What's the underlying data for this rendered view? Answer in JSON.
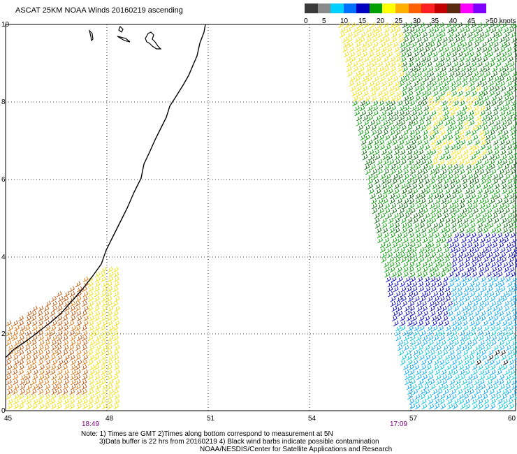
{
  "title": "ASCAT 25KM NOAA Winds 20160219 ascending",
  "axes": {
    "y_ticks": [
      "10",
      "8",
      "6",
      "4",
      "2",
      "0"
    ],
    "x_ticks": [
      "45",
      "48",
      "51",
      "54",
      "57",
      "60"
    ],
    "lat_range": [
      0,
      10
    ],
    "lon_range": [
      45,
      60
    ]
  },
  "pass_times": [
    "18:49",
    "17:09"
  ],
  "color_scale": {
    "labels": [
      "0",
      "5",
      "10",
      "15",
      "20",
      "25",
      "30",
      "35",
      "40",
      "45",
      ">50 knots"
    ],
    "colors": [
      "#3a3a3a",
      "#8a8a8a",
      "#00d0ff",
      "#0070ff",
      "#0000c0",
      "#00a000",
      "#ffff00",
      "#ffb000",
      "#ff6000",
      "#ff2020",
      "#c00000",
      "#5a2a10",
      "#ff00ff",
      "#8000ff"
    ]
  },
  "notes": [
    "Note: 1) Times are GMT 2)Times along bottom correspond to measurement at 5N",
    "3)Data buffer is 22 hrs from 20160219 4) Black wind barbs indicate possible contamination",
    "NOAA/NESDIS/Center for Satellite Applications and Research"
  ],
  "wind_colors": {
    "orange": "#e07000",
    "dark_orange": "#c05000",
    "yellow": "#f0e000",
    "green": "#00a000",
    "dark_green": "#006600",
    "blue": "#0000c8",
    "light_blue": "#00a8ff",
    "cyan": "#00c8d8",
    "contaminated": "#000000"
  }
}
